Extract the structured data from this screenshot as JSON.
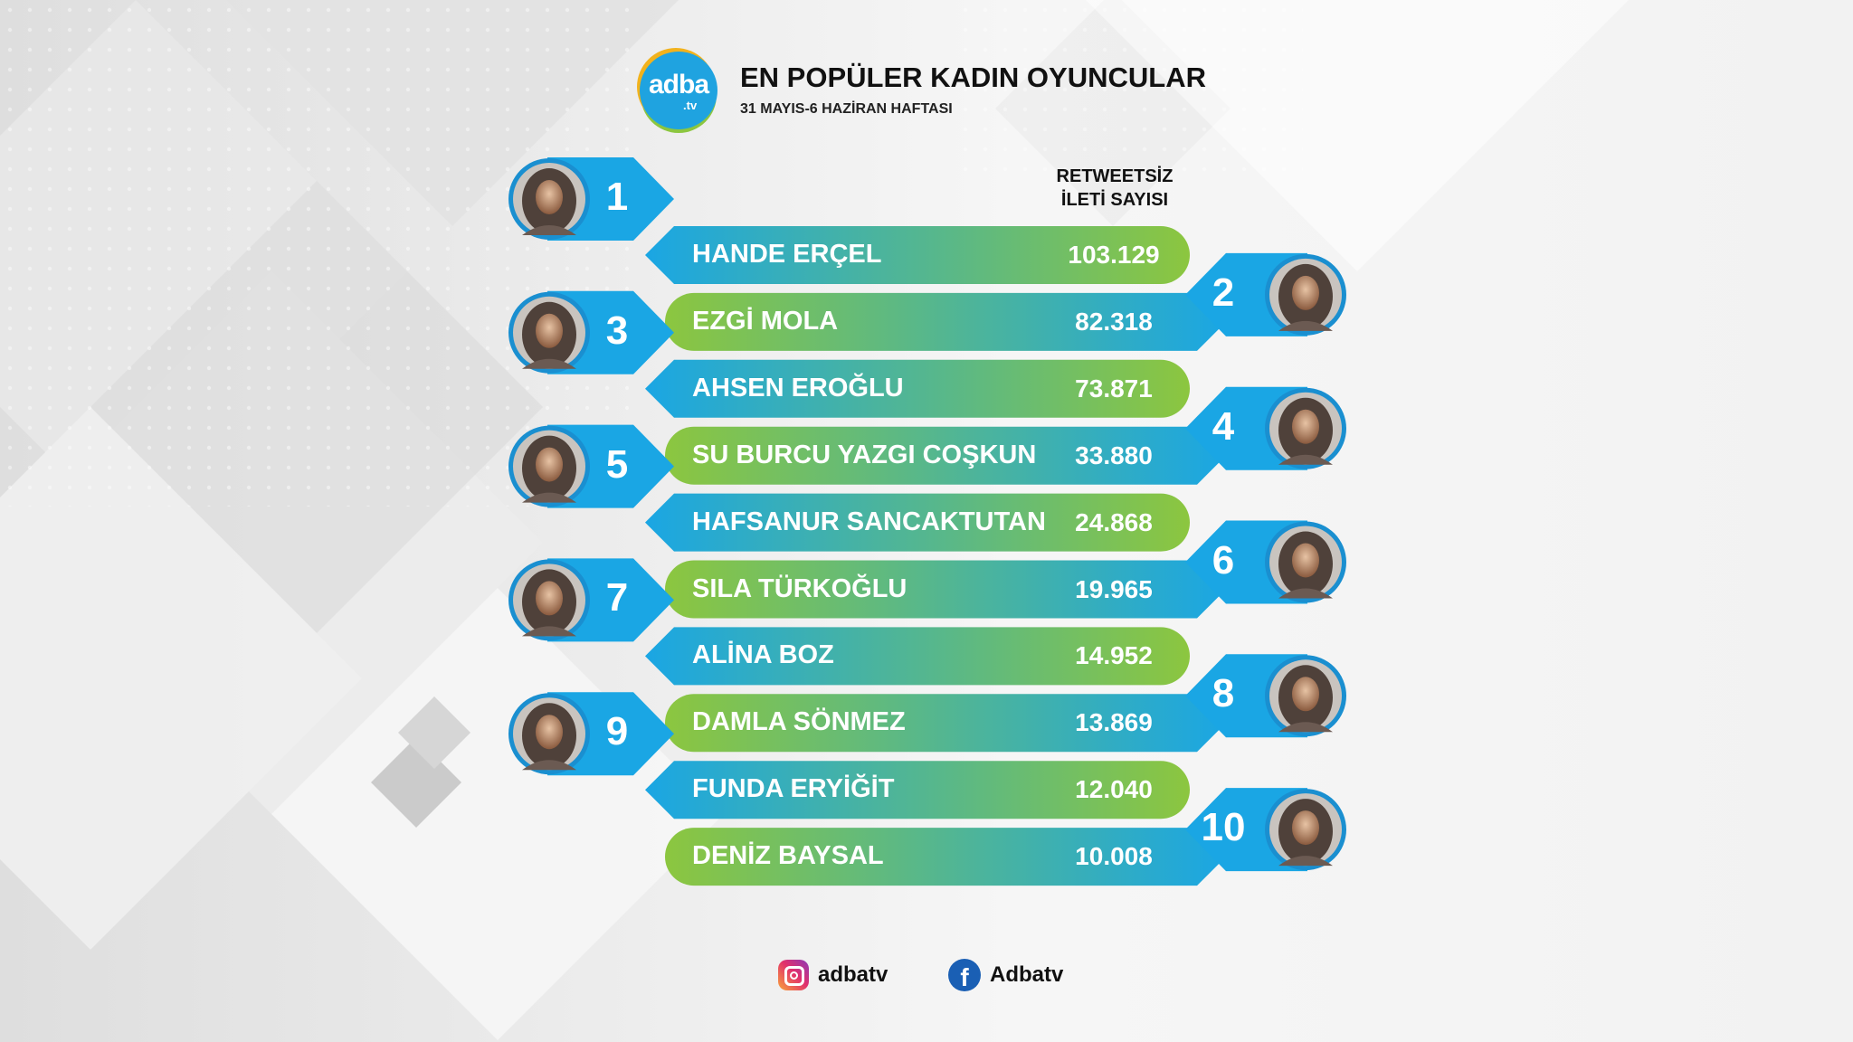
{
  "header": {
    "logo_text": "adba",
    "logo_sub": ".tv",
    "title": "EN POPÜLER KADIN OYUNCULAR",
    "subtitle": "31 MAYIS-6 HAZİRAN HAFTASI"
  },
  "chart_data": {
    "type": "bar",
    "title": "EN POPÜLER KADIN OYUNCULAR",
    "subtitle": "31 MAYIS-6 HAZİRAN HAFTASI",
    "column_header": [
      "RETWEETSİZ",
      "İLETİ SAYISI"
    ],
    "rows": [
      {
        "rank": "1",
        "name": "HANDE ERÇEL",
        "value_label": "103.129",
        "value": 103129
      },
      {
        "rank": "2",
        "name": "EZGİ MOLA",
        "value_label": "82.318",
        "value": 82318
      },
      {
        "rank": "3",
        "name": "AHSEN EROĞLU",
        "value_label": "73.871",
        "value": 73871
      },
      {
        "rank": "4",
        "name": "SU BURCU YAZGI COŞKUN",
        "value_label": "33.880",
        "value": 33880
      },
      {
        "rank": "5",
        "name": "HAFSANUR SANCAKTUTAN",
        "value_label": "24.868",
        "value": 24868
      },
      {
        "rank": "6",
        "name": "SILA TÜRKOĞLU",
        "value_label": "19.965",
        "value": 19965
      },
      {
        "rank": "7",
        "name": "ALİNA BOZ",
        "value_label": "14.952",
        "value": 14952
      },
      {
        "rank": "8",
        "name": "DAMLA SÖNMEZ",
        "value_label": "13.869",
        "value": 13869
      },
      {
        "rank": "9",
        "name": "FUNDA ERYİĞİT",
        "value_label": "12.040",
        "value": 12040
      },
      {
        "rank": "10",
        "name": "DENİZ BAYSAL",
        "value_label": "10.008",
        "value": 10008
      }
    ],
    "colors": {
      "bar_start": "#1aa6e4",
      "bar_end": "#8cc63f",
      "tab": "#1aa6e4",
      "avatar_ring": "#1a8fd0"
    }
  },
  "footer": {
    "instagram_icon": "instagram-icon",
    "instagram_handle": "adbatv",
    "facebook_icon": "facebook-icon",
    "facebook_handle": "Adbatv"
  }
}
